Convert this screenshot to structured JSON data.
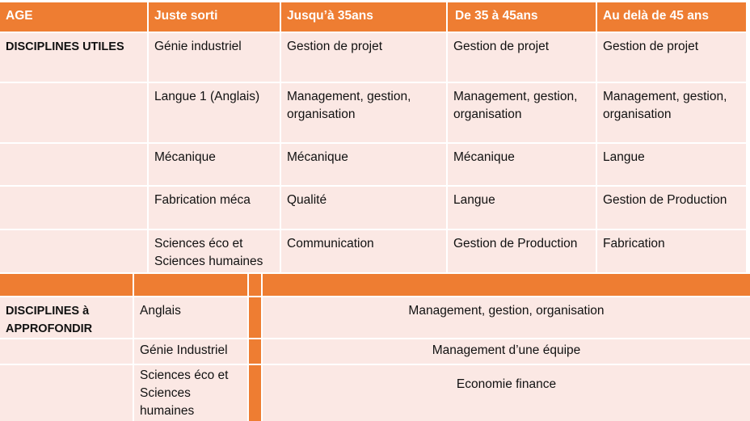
{
  "table1": {
    "headers": [
      "AGE",
      "Juste sorti",
      "Jusqu’à 35ans",
      "De 35 à 45ans",
      "Au delà de 45 ans"
    ],
    "section_label": "DISCIPLINES UTILES",
    "rows": [
      [
        "Génie industriel",
        "Gestion de projet",
        "Gestion de projet",
        "Gestion de projet"
      ],
      [
        "Langue 1 (Anglais)",
        "Management, gestion, organisation",
        "Management, gestion, organisation",
        "Management, gestion, organisation"
      ],
      [
        "Mécanique",
        "Mécanique",
        "Mécanique",
        "Langue"
      ],
      [
        "Fabrication méca",
        "Qualité",
        "Langue",
        "Gestion de Production"
      ],
      [
        "Sciences éco et Sciences humaines",
        "Communication",
        "Gestion de Production",
        "Fabrication"
      ]
    ]
  },
  "table2": {
    "section_label": "DISCIPLINES à APPROFONDIR",
    "rows": [
      [
        "Anglais",
        "Management, gestion, organisation"
      ],
      [
        "Génie Industriel",
        "Management d’une équipe"
      ],
      [
        "Sciences éco et Sciences humaines",
        "Economie finance"
      ]
    ]
  },
  "colors": {
    "header": "#ee7d32",
    "cell": "#fbe8e4"
  }
}
